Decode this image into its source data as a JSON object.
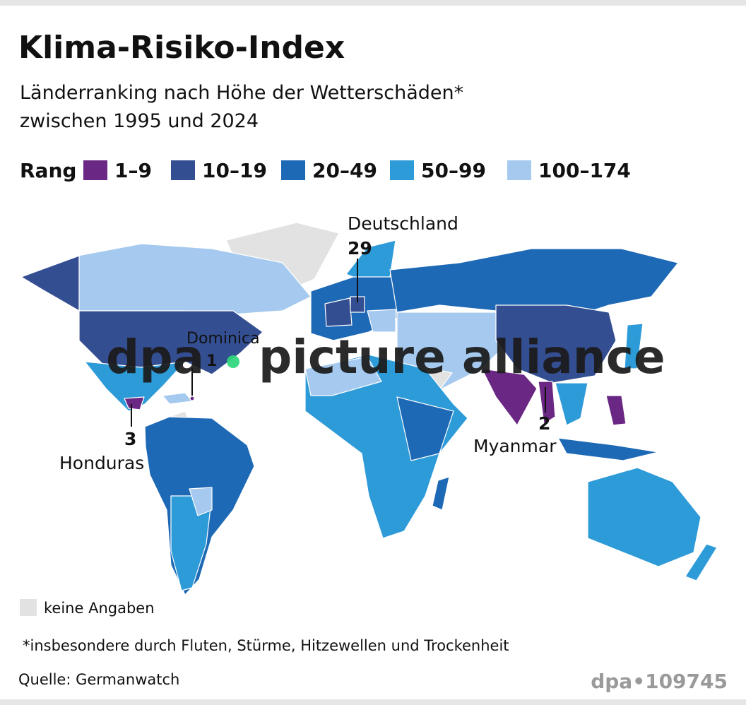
{
  "header": {
    "title": "Klima-Risiko-Index",
    "subtitle": [
      "Länderranking nach Höhe der Wetterschäden*",
      "zwischen 1995 und 2024"
    ]
  },
  "legend": {
    "label": "Rang",
    "items": [
      {
        "label": "1–9",
        "color": "#6a2784"
      },
      {
        "label": "10–19",
        "color": "#344e92"
      },
      {
        "label": "20–49",
        "color": "#1e69b5"
      },
      {
        "label": "50–99",
        "color": "#2e9bd9"
      },
      {
        "label": "100–174",
        "color": "#a6caef"
      }
    ],
    "no_data": {
      "label": "keine Angaben",
      "color": "#e2e2e2"
    }
  },
  "annotations": [
    {
      "country": "Deutschland",
      "rank": 29
    },
    {
      "country": "Dominica",
      "rank": 1
    },
    {
      "country": "Honduras",
      "rank": 3
    },
    {
      "country": "Myanmar",
      "rank": 2
    }
  ],
  "watermark": {
    "left": "dpa",
    "right": "picture alliance"
  },
  "footnote": "*insbesondere durch Fluten, Stürme, Hitzewellen und Trockenheit",
  "source": "Quelle: Germanwatch",
  "id": "dpa•109745"
}
